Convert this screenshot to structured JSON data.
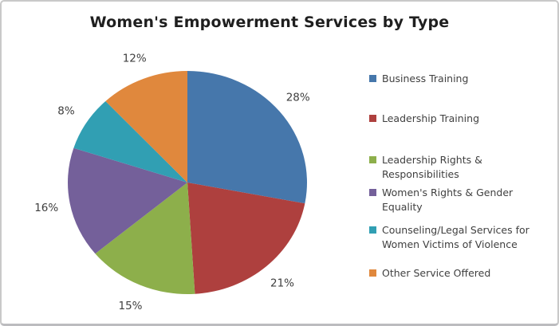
{
  "chart_data": {
    "type": "pie",
    "title": "Women's Empowerment Services by Type",
    "categories": [
      "Business Training",
      "Leadership Training",
      "Leadership Rights & Responsibilities",
      "Women's Rights & Gender Equality",
      "Counseling/Legal Services for Women Victims of Violence",
      "Other Service Offered"
    ],
    "values": [
      28,
      21,
      15,
      16,
      8,
      12
    ],
    "unit": "percent",
    "data_labels": [
      "28%",
      "21%",
      "15%",
      "16%",
      "8%",
      "12%"
    ],
    "colors": [
      "#4677AB",
      "#AE403E",
      "#8DAF4B",
      "#74609A",
      "#319FB3",
      "#E0883D"
    ],
    "start_angle": 0,
    "direction": "clockwise",
    "legend_position": "right",
    "data_label_position": "outside"
  },
  "legend": {
    "labels": [
      "Business Training",
      "Leadership Training",
      "Leadership Rights &\nResponsibilities",
      "Women's Rights & Gender\nEquality",
      "Counseling/Legal Services for\nWomen Victims of Violence",
      "Other Service Offered"
    ]
  },
  "frame": {
    "background": "#ffffff",
    "border_color": "#c9c9c9",
    "title_color": "#1f1f1f",
    "label_color": "#3f3f3f"
  }
}
